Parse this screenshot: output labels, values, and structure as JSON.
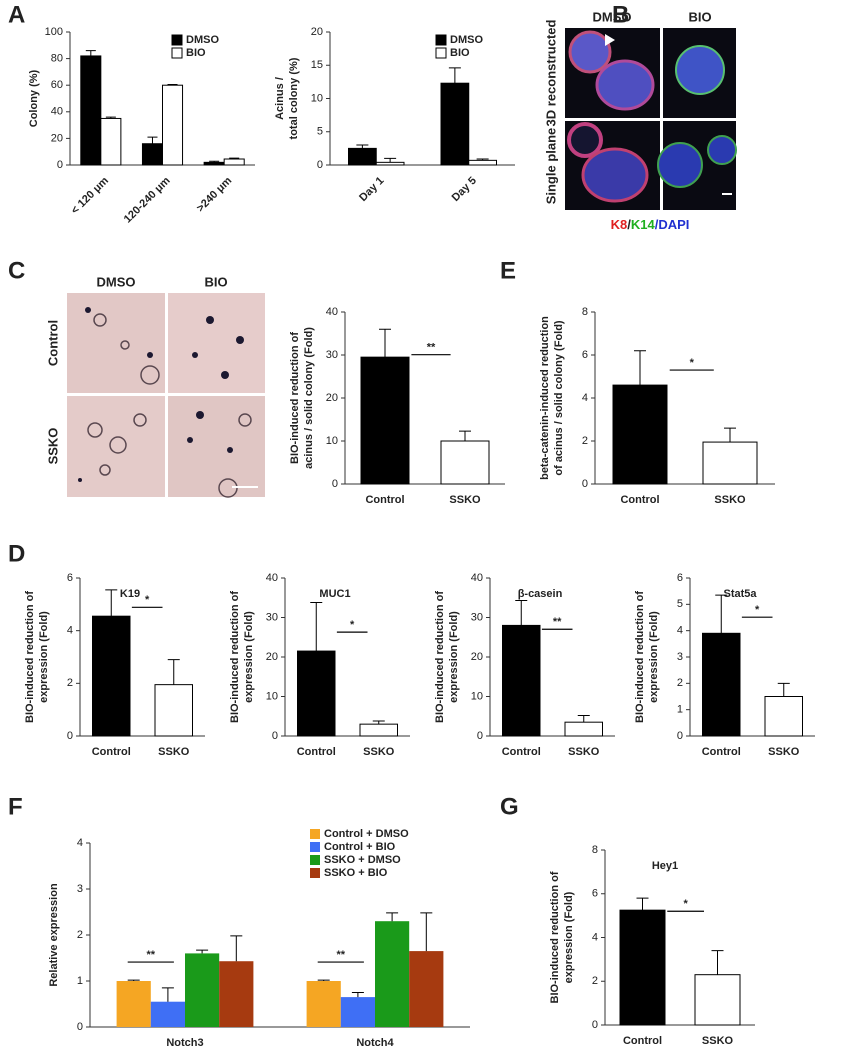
{
  "panel_labels": [
    "A",
    "B",
    "C",
    "E",
    "D",
    "F",
    "G"
  ],
  "images": {
    "B": {
      "columns": [
        "DMSO",
        "BIO"
      ],
      "rows": [
        "3D reconstructed",
        "Single plane"
      ],
      "stain": [
        "K8",
        "/",
        "K14",
        "/DAPI"
      ]
    },
    "C": {
      "columns": [
        "DMSO",
        "BIO"
      ],
      "rows": [
        "Control",
        "SSKO"
      ]
    }
  },
  "chart_data": [
    {
      "type": "bar",
      "ylabel": [
        "Colony (%)"
      ],
      "categories": [
        "< 120 μm",
        "120-240 μm",
        ">240 μm"
      ],
      "series": [
        {
          "name": "DMSO",
          "color": "#000000",
          "values": [
            82,
            16,
            2
          ],
          "errors": [
            4,
            5,
            0.8
          ]
        },
        {
          "name": "BIO",
          "color": "#ffffff",
          "values": [
            35,
            60,
            4.5
          ],
          "errors": [
            1,
            0.5,
            0.7
          ]
        }
      ],
      "ylim": [
        0,
        100
      ],
      "yticks": [
        0,
        20,
        40,
        60,
        80,
        100
      ]
    },
    {
      "type": "bar",
      "ylabel": [
        "Acinus /",
        "total colony (%)"
      ],
      "categories": [
        "Day 1",
        "Day 5"
      ],
      "series": [
        {
          "name": "DMSO",
          "color": "#000000",
          "values": [
            2.5,
            12.3
          ],
          "errors": [
            0.5,
            2.3
          ]
        },
        {
          "name": "BIO",
          "color": "#ffffff",
          "values": [
            0.4,
            0.7
          ],
          "errors": [
            0.6,
            0.2
          ]
        }
      ],
      "ylim": [
        0,
        20
      ],
      "yticks": [
        0,
        5,
        10,
        15,
        20
      ]
    },
    {
      "type": "bar",
      "ylabel": [
        "BIO-induced reduction of",
        "acinus / solid colony (Fold)"
      ],
      "categories": [
        "Control",
        "SSKO"
      ],
      "values": [
        29.5,
        10
      ],
      "errors": [
        6.5,
        2.3
      ],
      "colors": [
        "#000000",
        "#ffffff"
      ],
      "ylim": [
        0,
        40
      ],
      "yticks": [
        0,
        10,
        20,
        30,
        40
      ],
      "annotations": [
        "**"
      ]
    },
    {
      "type": "bar",
      "ylabel": [
        "beta-catenin-induced reduction",
        "of acinus / solid colony (Fold)"
      ],
      "categories": [
        "Control",
        "SSKO"
      ],
      "values": [
        4.6,
        1.95
      ],
      "errors": [
        1.6,
        0.65
      ],
      "colors": [
        "#000000",
        "#ffffff"
      ],
      "ylim": [
        0,
        8
      ],
      "yticks": [
        0,
        2,
        4,
        6,
        8
      ],
      "annotations": [
        "*"
      ]
    },
    {
      "type": "bar",
      "title": "K19",
      "ylabel": [
        "BIO-induced reduction of",
        "expression (Fold)"
      ],
      "categories": [
        "Control",
        "SSKO"
      ],
      "values": [
        4.55,
        1.95
      ],
      "errors": [
        1.0,
        0.95
      ],
      "colors": [
        "#000000",
        "#ffffff"
      ],
      "ylim": [
        0,
        6
      ],
      "yticks": [
        0,
        2,
        4,
        6
      ],
      "annotations": [
        "*"
      ]
    },
    {
      "type": "bar",
      "title": "MUC1",
      "ylabel": [
        "BIO-induced reduction of",
        "expression (Fold)"
      ],
      "categories": [
        "Control",
        "SSKO"
      ],
      "values": [
        21.5,
        3
      ],
      "errors": [
        12.3,
        0.8
      ],
      "colors": [
        "#000000",
        "#ffffff"
      ],
      "ylim": [
        0,
        40
      ],
      "yticks": [
        0,
        10,
        20,
        30,
        40
      ],
      "annotations": [
        "*"
      ]
    },
    {
      "type": "bar",
      "title": "β-casein",
      "ylabel": [
        "BIO-induced reduction of",
        "expression (Fold)"
      ],
      "categories": [
        "Control",
        "SSKO"
      ],
      "values": [
        28,
        3.5
      ],
      "errors": [
        6.3,
        1.7
      ],
      "colors": [
        "#000000",
        "#ffffff"
      ],
      "ylim": [
        0,
        40
      ],
      "yticks": [
        0,
        10,
        20,
        30,
        40
      ],
      "annotations": [
        "**"
      ]
    },
    {
      "type": "bar",
      "title": "Stat5a",
      "ylabel": [
        "BIO-induced reduction of",
        "expression (Fold)"
      ],
      "categories": [
        "Control",
        "SSKO"
      ],
      "values": [
        3.9,
        1.5
      ],
      "errors": [
        1.45,
        0.5
      ],
      "colors": [
        "#000000",
        "#ffffff"
      ],
      "ylim": [
        0,
        6
      ],
      "yticks": [
        0,
        1,
        2,
        3,
        4,
        5,
        6
      ],
      "annotations": [
        "*"
      ]
    },
    {
      "type": "bar",
      "ylabel": [
        "Relative expression"
      ],
      "categories": [
        "Notch3",
        "Notch4"
      ],
      "series": [
        {
          "name": "Control + DMSO",
          "color": "#f5a623",
          "values": [
            1,
            1
          ],
          "errors": [
            0.02,
            0.02
          ]
        },
        {
          "name": "Control + BIO",
          "color": "#3f6ff5",
          "values": [
            0.55,
            0.65
          ],
          "errors": [
            0.3,
            0.1
          ]
        },
        {
          "name": "SSKO + DMSO",
          "color": "#1a9a1a",
          "values": [
            1.6,
            2.3
          ],
          "errors": [
            0.07,
            0.18
          ]
        },
        {
          "name": "SSKO + BIO",
          "color": "#a63a10",
          "values": [
            1.43,
            1.65
          ],
          "errors": [
            0.55,
            0.83
          ]
        }
      ],
      "ylim": [
        0,
        4
      ],
      "yticks": [
        0,
        1,
        2,
        3,
        4
      ],
      "annotations": [
        "**",
        "**"
      ]
    },
    {
      "type": "bar",
      "title": "Hey1",
      "ylabel": [
        "BIO-induced reduction of",
        "expression (Fold)"
      ],
      "categories": [
        "Control",
        "SSKO"
      ],
      "values": [
        5.25,
        2.3
      ],
      "errors": [
        0.55,
        1.1
      ],
      "colors": [
        "#000000",
        "#ffffff"
      ],
      "ylim": [
        0,
        8
      ],
      "yticks": [
        0,
        2,
        4,
        6,
        8
      ],
      "annotations": [
        "*"
      ]
    }
  ]
}
